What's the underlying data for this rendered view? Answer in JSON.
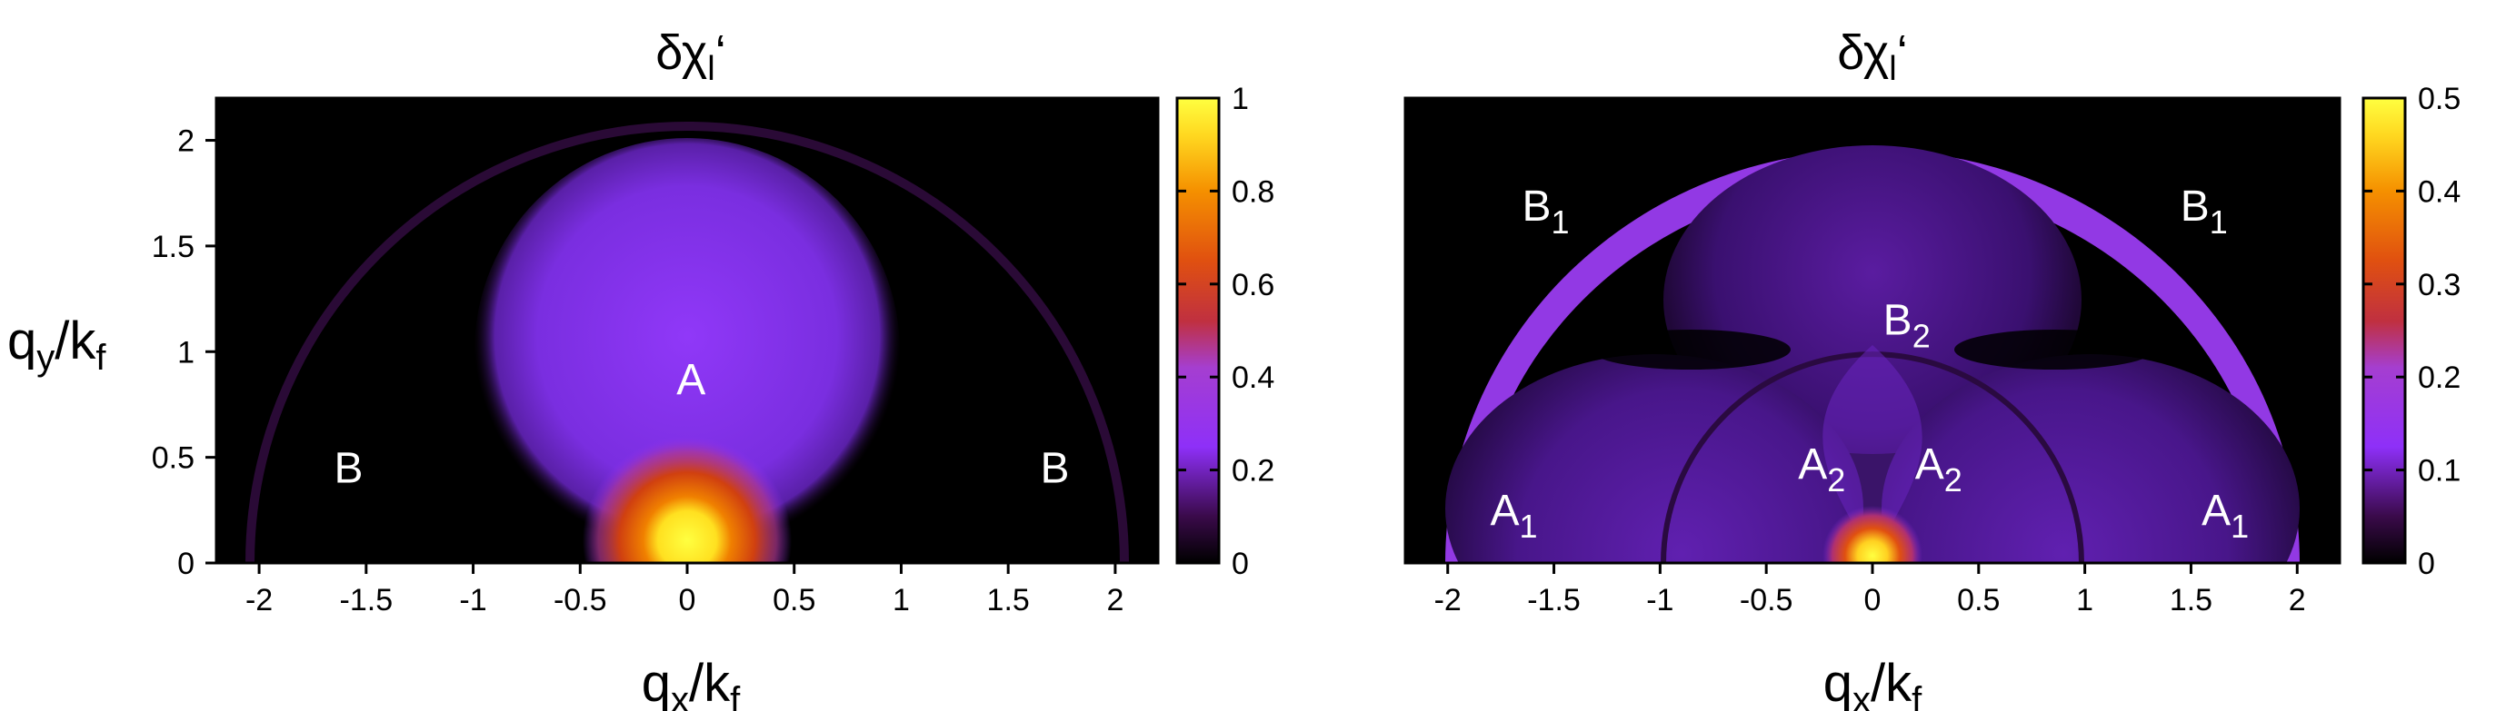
{
  "chart_data": [
    {
      "type": "heatmap",
      "title": "δχ_l‘",
      "xlabel": "q_x/k_f",
      "ylabel": "q_y/k_f",
      "xlim": [
        -2.2,
        2.2
      ],
      "ylim": [
        0,
        2.2
      ],
      "x_ticks": [
        -2,
        -1.5,
        -1,
        -0.5,
        0,
        0.5,
        1,
        1.5,
        2
      ],
      "y_ticks": [
        0,
        0.5,
        1,
        1.5,
        2
      ],
      "colorbar": {
        "min": 0,
        "max": 1,
        "ticks": [
          0,
          0.2,
          0.4,
          0.6,
          0.8,
          1
        ]
      },
      "annotations": [
        {
          "text": "A",
          "x": -0.05,
          "y": 0.8
        },
        {
          "text": "B",
          "x": -1.65,
          "y": 0.38
        },
        {
          "text": "B",
          "x": 1.65,
          "y": 0.38
        }
      ]
    },
    {
      "type": "heatmap",
      "title": "δχ_l‘",
      "xlabel": "q_x/k_f",
      "ylabel": "",
      "xlim": [
        -2.2,
        2.2
      ],
      "ylim": [
        0,
        2.2
      ],
      "x_ticks": [
        -2,
        -1.5,
        -1,
        -0.5,
        0,
        0.5,
        1,
        1.5,
        2
      ],
      "y_ticks": [],
      "colorbar": {
        "min": 0,
        "max": 0.5,
        "ticks": [
          0,
          0.1,
          0.2,
          0.3,
          0.4,
          0.5
        ]
      },
      "annotations": [
        {
          "text": "B_1",
          "x": -1.65,
          "y": 1.62
        },
        {
          "text": "B_1",
          "x": 1.45,
          "y": 1.62
        },
        {
          "text": "B_2",
          "x": 0.05,
          "y": 1.08
        },
        {
          "text": "A_2",
          "x": -0.35,
          "y": 0.4
        },
        {
          "text": "A_2",
          "x": 0.2,
          "y": 0.4
        },
        {
          "text": "A_1",
          "x": -1.8,
          "y": 0.18
        },
        {
          "text": "A_1",
          "x": 1.55,
          "y": 0.18
        }
      ]
    }
  ],
  "colors": {
    "colormap": [
      "#000000",
      "#3a0a4a",
      "#8e30f8",
      "#b040a8",
      "#d04010",
      "#f08000",
      "#ffe020",
      "#ffff40"
    ]
  }
}
